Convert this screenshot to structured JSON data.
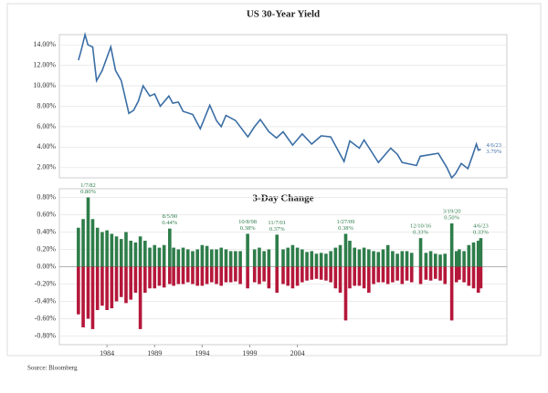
{
  "chart_data": [
    {
      "type": "line",
      "title": "US 30-Year Yield",
      "x": [
        1981.0,
        1981.3,
        1981.7,
        1982.0,
        1982.5,
        1982.9,
        1983.5,
        1984.4,
        1984.9,
        1985.5,
        1986.3,
        1986.8,
        1987.3,
        1987.8,
        1988.5,
        1989.0,
        1989.6,
        1990.5,
        1990.9,
        1991.5,
        1992.0,
        1993.0,
        1993.8,
        1994.8,
        1995.5,
        1996.0,
        1996.5,
        1997.5,
        1998.8,
        1999.5,
        2000.1,
        2001.0,
        2001.8,
        2002.5,
        2003.5,
        2004.5,
        2005.5,
        2006.5,
        2007.5,
        2008.9,
        2009.5,
        2010.5,
        2011.0,
        2012.5,
        2013.8,
        2014.5,
        2015.0,
        2016.5,
        2016.9,
        2018.8,
        2019.7,
        2020.2,
        2020.6,
        2021.2,
        2021.9,
        2022.4,
        2022.8,
        2023.0,
        2023.26
      ],
      "series": [
        {
          "color": "#3b6ea5",
          "values": [
            12.5,
            13.5,
            15.0,
            14.0,
            13.8,
            10.5,
            11.5,
            13.8,
            11.5,
            10.5,
            7.3,
            7.6,
            8.5,
            10.0,
            9.0,
            9.2,
            8.0,
            9.0,
            8.3,
            8.4,
            7.5,
            7.2,
            5.8,
            8.1,
            6.6,
            6.0,
            7.1,
            6.6,
            5.0,
            6.0,
            6.7,
            5.5,
            4.9,
            5.5,
            4.2,
            5.3,
            4.3,
            5.1,
            5.0,
            2.6,
            4.6,
            3.9,
            4.7,
            2.5,
            3.9,
            3.3,
            2.5,
            2.2,
            3.1,
            3.4,
            2.0,
            1.0,
            1.4,
            2.4,
            1.9,
            3.2,
            4.3,
            3.7,
            3.8
          ]
        }
      ],
      "xlim": [
        1979,
        2026
      ],
      "ylim": [
        1,
        15
      ],
      "yticks": [
        {
          "value": 2,
          "label": "2.00%"
        },
        {
          "value": 4,
          "label": "4.00%"
        },
        {
          "value": 6,
          "label": "6.00%"
        },
        {
          "value": 8,
          "label": "8.00%"
        },
        {
          "value": 10,
          "label": "10.00%"
        },
        {
          "value": 12,
          "label": "12.00%"
        },
        {
          "value": 14,
          "label": "14.00%"
        }
      ],
      "grid": true,
      "annotations": [
        {
          "date": "4/6/23",
          "x": 2023.26,
          "value": 3.79,
          "label": "3.79%"
        }
      ]
    },
    {
      "type": "bar",
      "title": "3-Day Change",
      "x": [
        1981.0,
        1981.5,
        1982.02,
        1982.5,
        1983.0,
        1983.5,
        1984.0,
        1984.5,
        1985.0,
        1985.5,
        1986.0,
        1986.5,
        1987.0,
        1987.5,
        1988.0,
        1988.5,
        1989.0,
        1989.5,
        1990.0,
        1990.59,
        1991.0,
        1991.5,
        1992.0,
        1992.5,
        1993.0,
        1993.5,
        1994.0,
        1994.5,
        1995.0,
        1995.5,
        1996.0,
        1996.5,
        1997.0,
        1997.5,
        1998.0,
        1998.77,
        1999.5,
        2000.0,
        2000.5,
        2001.0,
        2001.85,
        2002.5,
        2003.0,
        2003.5,
        2004.0,
        2004.5,
        2005.0,
        2005.5,
        2006.0,
        2006.5,
        2007.0,
        2007.5,
        2008.0,
        2008.5,
        2009.07,
        2009.5,
        2010.0,
        2010.5,
        2011.0,
        2011.5,
        2012.0,
        2012.5,
        2013.0,
        2013.5,
        2014.0,
        2014.5,
        2015.0,
        2015.5,
        2016.0,
        2016.94,
        2017.5,
        2018.0,
        2018.5,
        2019.0,
        2019.5,
        2020.21,
        2020.7,
        2021.0,
        2021.5,
        2022.0,
        2022.5,
        2023.0,
        2023.26
      ],
      "series": [
        {
          "color": "#2e7d4a",
          "values": [
            0.45,
            0.55,
            0.8,
            0.55,
            0.45,
            0.4,
            0.42,
            0.38,
            0.35,
            0.32,
            0.4,
            0.3,
            0.28,
            0.35,
            0.3,
            0.22,
            0.25,
            0.22,
            0.25,
            0.44,
            0.22,
            0.2,
            0.22,
            0.2,
            0.18,
            0.2,
            0.25,
            0.24,
            0.2,
            0.2,
            0.22,
            0.2,
            0.18,
            0.18,
            0.18,
            0.38,
            0.2,
            0.22,
            0.18,
            0.2,
            0.37,
            0.2,
            0.22,
            0.25,
            0.22,
            0.2,
            0.17,
            0.18,
            0.15,
            0.16,
            0.15,
            0.18,
            0.22,
            0.25,
            0.38,
            0.3,
            0.22,
            0.2,
            0.22,
            0.2,
            0.18,
            0.17,
            0.2,
            0.25,
            0.18,
            0.15,
            0.18,
            0.18,
            0.16,
            0.33,
            0.16,
            0.18,
            0.15,
            0.14,
            0.15,
            0.5,
            0.18,
            0.2,
            0.18,
            0.25,
            0.28,
            0.3,
            0.33
          ]
        },
        {
          "color": "#b5173a",
          "values": [
            -0.55,
            -0.7,
            -0.6,
            -0.72,
            -0.5,
            -0.45,
            -0.5,
            -0.48,
            -0.4,
            -0.35,
            -0.42,
            -0.38,
            -0.3,
            -0.72,
            -0.3,
            -0.25,
            -0.25,
            -0.22,
            -0.24,
            -0.2,
            -0.22,
            -0.2,
            -0.2,
            -0.18,
            -0.2,
            -0.22,
            -0.22,
            -0.2,
            -0.18,
            -0.2,
            -0.22,
            -0.18,
            -0.18,
            -0.17,
            -0.2,
            -0.25,
            -0.18,
            -0.2,
            -0.17,
            -0.25,
            -0.3,
            -0.2,
            -0.22,
            -0.25,
            -0.22,
            -0.18,
            -0.16,
            -0.15,
            -0.14,
            -0.15,
            -0.16,
            -0.18,
            -0.25,
            -0.3,
            -0.62,
            -0.25,
            -0.22,
            -0.22,
            -0.25,
            -0.3,
            -0.2,
            -0.18,
            -0.18,
            -0.2,
            -0.18,
            -0.16,
            -0.2,
            -0.16,
            -0.18,
            -0.2,
            -0.15,
            -0.16,
            -0.14,
            -0.16,
            -0.2,
            -0.62,
            -0.18,
            -0.15,
            -0.18,
            -0.22,
            -0.25,
            -0.3,
            -0.25
          ]
        }
      ],
      "xlim": [
        1979,
        2026
      ],
      "xticks": [
        1984,
        1989,
        1994,
        1999,
        2004
      ],
      "ylim": [
        -0.9,
        0.9
      ],
      "yticks": [
        {
          "value": -0.8,
          "label": "-0.80%"
        },
        {
          "value": -0.6,
          "label": "-0.60%"
        },
        {
          "value": -0.4,
          "label": "-0.40%"
        },
        {
          "value": -0.2,
          "label": "-0.20%"
        },
        {
          "value": 0,
          "label": "0.00%"
        },
        {
          "value": 0.2,
          "label": "0.20%"
        },
        {
          "value": 0.4,
          "label": "0.40%"
        },
        {
          "value": 0.6,
          "label": "0.60%"
        },
        {
          "value": 0.8,
          "label": "0.80%"
        }
      ],
      "grid": true,
      "annotations": [
        {
          "date": "1/7/82",
          "x": 1982.02,
          "value": 0.8,
          "label": "0.80%"
        },
        {
          "date": "8/5/90",
          "x": 1990.59,
          "value": 0.44,
          "label": "0.44%"
        },
        {
          "date": "10/8/98",
          "x": 1998.77,
          "value": 0.38,
          "label": "0.38%"
        },
        {
          "date": "11/7/01",
          "x": 2001.85,
          "value": 0.37,
          "label": "0.37%"
        },
        {
          "date": "1/27/09",
          "x": 2009.07,
          "value": 0.38,
          "label": "0.38%"
        },
        {
          "date": "12/10/16",
          "x": 2016.94,
          "value": 0.33,
          "label": "0.33%"
        },
        {
          "date": "3/19/20",
          "x": 2020.21,
          "value": 0.5,
          "label": "0.50%"
        },
        {
          "date": "4/6/23",
          "x": 2023.26,
          "value": 0.33,
          "label": "0.33%"
        }
      ]
    }
  ],
  "source": "Source: Bloomberg"
}
